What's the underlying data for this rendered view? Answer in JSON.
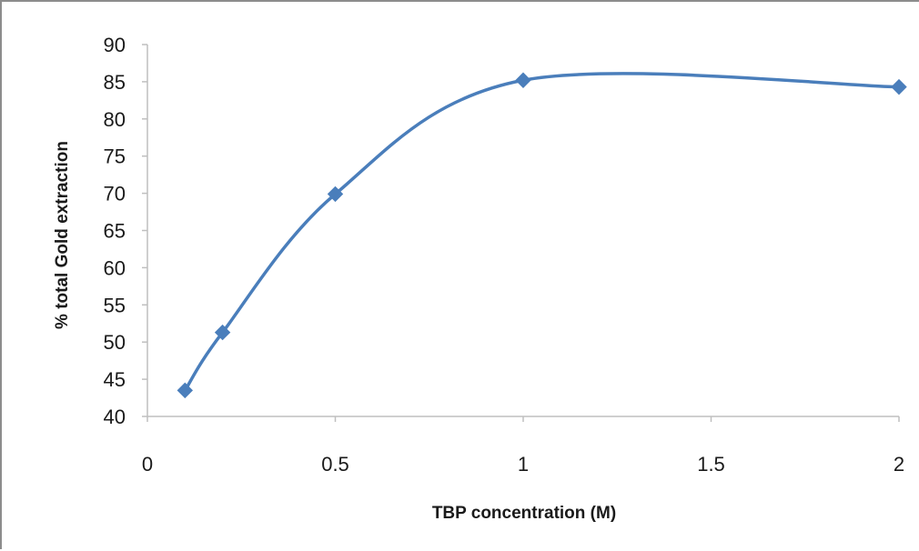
{
  "chart_data": {
    "type": "line",
    "title": "",
    "xlabel": "TBP concentration (M)",
    "ylabel": "% total Gold extraction",
    "xlim": [
      0,
      2
    ],
    "ylim": [
      40,
      90
    ],
    "xticks": [
      0,
      0.5,
      1,
      1.5,
      2
    ],
    "xtick_labels": [
      "0",
      "0.5",
      "1",
      "1.5",
      "2"
    ],
    "yticks": [
      40,
      45,
      50,
      55,
      60,
      65,
      70,
      75,
      80,
      85,
      90
    ],
    "ytick_labels": [
      "40",
      "45",
      "50",
      "55",
      "60",
      "65",
      "70",
      "75",
      "80",
      "85",
      "90"
    ],
    "grid": false,
    "legend": "none",
    "smooth": true,
    "marker": "diamond",
    "series_color": "#4a7ebb",
    "axis_color": "#bfbfbf",
    "series": [
      {
        "x": [
          0.1,
          0.2,
          0.5,
          1,
          2
        ],
        "y": [
          43.5,
          51.3,
          69.9,
          85.2,
          84.3
        ]
      }
    ]
  }
}
